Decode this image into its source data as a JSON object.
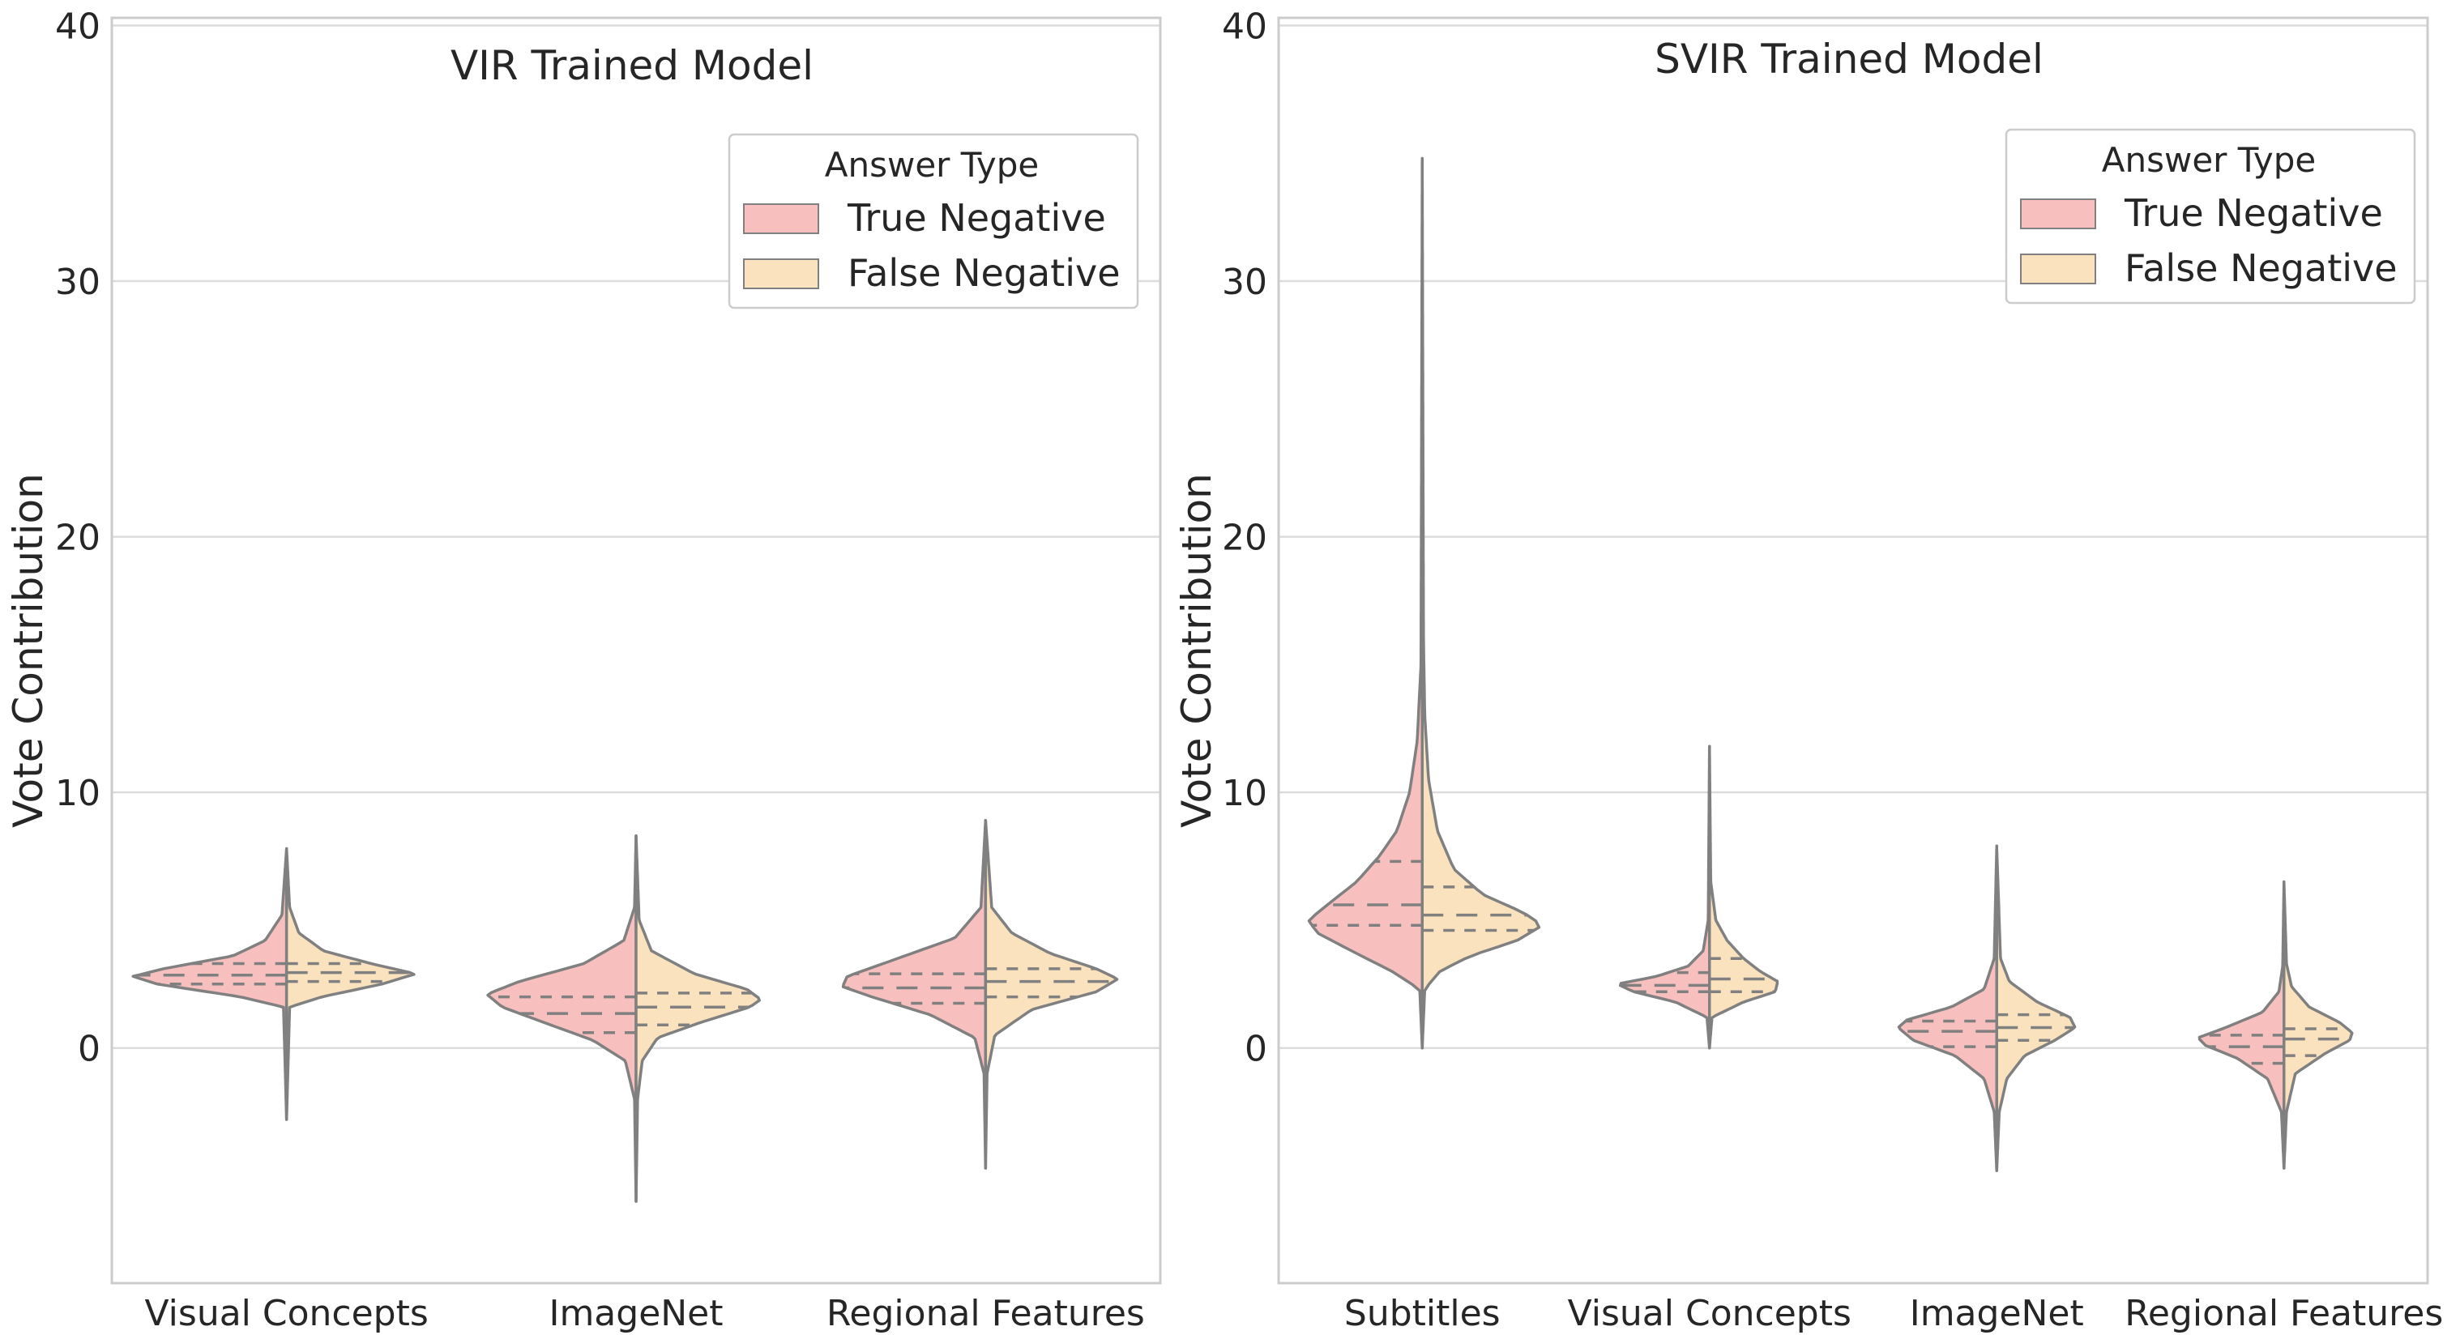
{
  "colors": {
    "true_negative": "#f8bfbf",
    "false_negative": "#f9e2bd",
    "outline": "#808080",
    "grid": "#dcdcdc",
    "spine": "#cccccc",
    "background": "#ffffff"
  },
  "chart_data": [
    {
      "type": "violin",
      "split": true,
      "title": "VIR Trained Model",
      "xlabel": "",
      "ylabel": "Vote Contribution",
      "ylim": [
        -9.2,
        40.3
      ],
      "yticks": [
        "0",
        "10",
        "20",
        "30",
        "40"
      ],
      "grid": true,
      "legend": {
        "title": "Answer Type",
        "placement": "top-right",
        "entries": [
          "True Negative",
          "False Negative"
        ]
      },
      "categories": [
        "Visual Concepts",
        "ImageNet",
        "Regional Features"
      ],
      "series": [
        {
          "name": "True Negative",
          "violins": [
            {
              "range": [
                -2.8,
                7.8
              ],
              "quartiles": [
                2.5,
                2.85,
                3.3
              ],
              "profile": [
                [
                  -2.8,
                  0
                ],
                [
                  1.6,
                  0.02
                ],
                [
                  2.0,
                  0.3
                ],
                [
                  2.5,
                  0.84
                ],
                [
                  2.8,
                  1.0
                ],
                [
                  3.1,
                  0.8
                ],
                [
                  3.6,
                  0.35
                ],
                [
                  4.2,
                  0.14
                ],
                [
                  5.2,
                  0.03
                ],
                [
                  7.8,
                  0
                ]
              ]
            },
            {
              "range": [
                -6.0,
                8.3
              ],
              "quartiles": [
                0.6,
                1.35,
                2.0
              ],
              "profile": [
                [
                  -6.0,
                  0
                ],
                [
                  -2.0,
                  0.01
                ],
                [
                  -0.5,
                  0.07
                ],
                [
                  0.3,
                  0.28
                ],
                [
                  1.0,
                  0.6
                ],
                [
                  1.6,
                  0.87
                ],
                [
                  2.1,
                  0.97
                ],
                [
                  2.6,
                  0.76
                ],
                [
                  3.3,
                  0.34
                ],
                [
                  4.2,
                  0.08
                ],
                [
                  5.5,
                  0.01
                ],
                [
                  8.3,
                  0
                ]
              ]
            },
            {
              "range": [
                -4.7,
                8.9
              ],
              "quartiles": [
                1.75,
                2.35,
                2.9
              ],
              "profile": [
                [
                  -4.7,
                  0
                ],
                [
                  -1.0,
                  0.01
                ],
                [
                  0.4,
                  0.07
                ],
                [
                  1.3,
                  0.36
                ],
                [
                  2.0,
                  0.74
                ],
                [
                  2.4,
                  0.93
                ],
                [
                  2.8,
                  0.9
                ],
                [
                  3.4,
                  0.62
                ],
                [
                  4.3,
                  0.2
                ],
                [
                  5.5,
                  0.03
                ],
                [
                  8.9,
                  0
                ]
              ]
            }
          ]
        },
        {
          "name": "False Negative",
          "violins": [
            {
              "range": [
                -2.8,
                7.8
              ],
              "quartiles": [
                2.6,
                2.95,
                3.3
              ],
              "profile": [
                [
                  -2.8,
                  0
                ],
                [
                  1.6,
                  0.02
                ],
                [
                  2.0,
                  0.23
                ],
                [
                  2.5,
                  0.62
                ],
                [
                  2.9,
                  0.84
                ],
                [
                  3.3,
                  0.55
                ],
                [
                  3.8,
                  0.24
                ],
                [
                  4.5,
                  0.08
                ],
                [
                  5.5,
                  0.02
                ],
                [
                  7.8,
                  0
                ]
              ]
            },
            {
              "range": [
                -6.0,
                8.3
              ],
              "quartiles": [
                0.9,
                1.6,
                2.15
              ],
              "profile": [
                [
                  -6.0,
                  0
                ],
                [
                  -2.0,
                  0.01
                ],
                [
                  -0.5,
                  0.04
                ],
                [
                  0.4,
                  0.14
                ],
                [
                  1.0,
                  0.42
                ],
                [
                  1.6,
                  0.74
                ],
                [
                  1.9,
                  0.81
                ],
                [
                  2.3,
                  0.72
                ],
                [
                  2.9,
                  0.38
                ],
                [
                  3.8,
                  0.1
                ],
                [
                  5.0,
                  0.02
                ],
                [
                  8.3,
                  0
                ]
              ]
            },
            {
              "range": [
                -4.7,
                8.9
              ],
              "quartiles": [
                2.0,
                2.6,
                3.1
              ],
              "profile": [
                [
                  -4.7,
                  0
                ],
                [
                  -1.0,
                  0.01
                ],
                [
                  0.5,
                  0.06
                ],
                [
                  1.5,
                  0.3
                ],
                [
                  2.2,
                  0.72
                ],
                [
                  2.7,
                  0.86
                ],
                [
                  3.1,
                  0.72
                ],
                [
                  3.7,
                  0.42
                ],
                [
                  4.5,
                  0.17
                ],
                [
                  5.5,
                  0.04
                ],
                [
                  8.9,
                  0
                ]
              ]
            }
          ]
        }
      ]
    },
    {
      "type": "violin",
      "split": true,
      "title": "SVIR Trained Model",
      "xlabel": "",
      "ylabel": "Vote Contribution",
      "ylim": [
        -9.2,
        40.3
      ],
      "yticks": [
        "0",
        "10",
        "20",
        "30",
        "40"
      ],
      "grid": true,
      "legend": {
        "title": "Answer Type",
        "placement": "top-right",
        "entries": [
          "True Negative",
          "False Negative"
        ]
      },
      "categories": [
        "Subtitles",
        "Visual Concepts",
        "ImageNet",
        "Regional Features"
      ],
      "series": [
        {
          "name": "True Negative",
          "violins": [
            {
              "range": [
                0.0,
                34.8
              ],
              "quartiles": [
                4.8,
                5.6,
                7.3
              ],
              "profile": [
                [
                  0.0,
                  0
                ],
                [
                  2.3,
                  0.02
                ],
                [
                  3.0,
                  0.24
                ],
                [
                  3.8,
                  0.56
                ],
                [
                  4.5,
                  0.83
                ],
                [
                  5.0,
                  0.9
                ],
                [
                  5.6,
                  0.75
                ],
                [
                  6.5,
                  0.52
                ],
                [
                  7.5,
                  0.34
                ],
                [
                  8.5,
                  0.2
                ],
                [
                  10.0,
                  0.1
                ],
                [
                  12.0,
                  0.04
                ],
                [
                  15.0,
                  0.01
                ],
                [
                  34.8,
                  0
                ]
              ]
            },
            {
              "range": [
                0.0,
                11.8
              ],
              "quartiles": [
                2.2,
                2.45,
                2.95
              ],
              "profile": [
                [
                  0.0,
                  0
                ],
                [
                  1.2,
                  0.02
                ],
                [
                  1.8,
                  0.27
                ],
                [
                  2.2,
                  0.6
                ],
                [
                  2.5,
                  0.73
                ],
                [
                  2.8,
                  0.42
                ],
                [
                  3.2,
                  0.17
                ],
                [
                  3.8,
                  0.05
                ],
                [
                  5.0,
                  0.01
                ],
                [
                  11.8,
                  0
                ]
              ]
            },
            {
              "range": [
                -4.8,
                7.9
              ],
              "quartiles": [
                0.05,
                0.65,
                1.05
              ],
              "profile": [
                [
                  -4.8,
                  0
                ],
                [
                  -2.5,
                  0.02
                ],
                [
                  -1.2,
                  0.1
                ],
                [
                  -0.3,
                  0.33
                ],
                [
                  0.3,
                  0.66
                ],
                [
                  0.8,
                  0.78
                ],
                [
                  1.1,
                  0.71
                ],
                [
                  1.6,
                  0.36
                ],
                [
                  2.3,
                  0.1
                ],
                [
                  3.5,
                  0.02
                ],
                [
                  7.9,
                  0
                ]
              ]
            },
            {
              "range": [
                -4.7,
                6.5
              ],
              "quartiles": [
                -0.6,
                0.05,
                0.5
              ],
              "profile": [
                [
                  -4.7,
                  0
                ],
                [
                  -2.5,
                  0.02
                ],
                [
                  -1.2,
                  0.13
                ],
                [
                  -0.4,
                  0.37
                ],
                [
                  0.1,
                  0.62
                ],
                [
                  0.4,
                  0.68
                ],
                [
                  0.8,
                  0.46
                ],
                [
                  1.4,
                  0.17
                ],
                [
                  2.2,
                  0.04
                ],
                [
                  3.2,
                  0.01
                ],
                [
                  6.5,
                  0
                ]
              ]
            }
          ]
        },
        {
          "name": "False Negative",
          "violins": [
            {
              "range": [
                0.0,
                34.8
              ],
              "quartiles": [
                4.6,
                5.2,
                6.3
              ],
              "profile": [
                [
                  0.0,
                  0
                ],
                [
                  2.3,
                  0.02
                ],
                [
                  3.0,
                  0.14
                ],
                [
                  3.6,
                  0.38
                ],
                [
                  4.2,
                  0.75
                ],
                [
                  4.8,
                  0.95
                ],
                [
                  5.3,
                  0.8
                ],
                [
                  6.0,
                  0.48
                ],
                [
                  7.0,
                  0.25
                ],
                [
                  8.5,
                  0.12
                ],
                [
                  10.5,
                  0.05
                ],
                [
                  13.0,
                  0.02
                ],
                [
                  16.0,
                  0.01
                ],
                [
                  34.8,
                  0
                ]
              ]
            },
            {
              "range": [
                0.0,
                11.8
              ],
              "quartiles": [
                2.2,
                2.7,
                3.5
              ],
              "profile": [
                [
                  0.0,
                  0
                ],
                [
                  1.2,
                  0.02
                ],
                [
                  1.8,
                  0.27
                ],
                [
                  2.2,
                  0.52
                ],
                [
                  2.6,
                  0.54
                ],
                [
                  3.0,
                  0.4
                ],
                [
                  3.5,
                  0.27
                ],
                [
                  4.2,
                  0.14
                ],
                [
                  5.0,
                  0.05
                ],
                [
                  6.5,
                  0.01
                ],
                [
                  11.8,
                  0
                ]
              ]
            },
            {
              "range": [
                -4.8,
                7.9
              ],
              "quartiles": [
                0.3,
                0.8,
                1.3
              ],
              "profile": [
                [
                  -4.8,
                  0
                ],
                [
                  -2.5,
                  0.02
                ],
                [
                  -1.2,
                  0.08
                ],
                [
                  -0.3,
                  0.22
                ],
                [
                  0.3,
                  0.46
                ],
                [
                  0.8,
                  0.62
                ],
                [
                  1.2,
                  0.58
                ],
                [
                  1.8,
                  0.32
                ],
                [
                  2.6,
                  0.1
                ],
                [
                  3.5,
                  0.03
                ],
                [
                  7.9,
                  0
                ]
              ]
            },
            {
              "range": [
                -4.7,
                6.5
              ],
              "quartiles": [
                -0.3,
                0.35,
                0.75
              ],
              "profile": [
                [
                  -4.7,
                  0
                ],
                [
                  -2.5,
                  0.02
                ],
                [
                  -1.0,
                  0.09
                ],
                [
                  -0.2,
                  0.33
                ],
                [
                  0.3,
                  0.52
                ],
                [
                  0.6,
                  0.54
                ],
                [
                  1.0,
                  0.44
                ],
                [
                  1.6,
                  0.2
                ],
                [
                  2.4,
                  0.06
                ],
                [
                  3.3,
                  0.02
                ],
                [
                  6.5,
                  0
                ]
              ]
            }
          ]
        }
      ]
    }
  ]
}
